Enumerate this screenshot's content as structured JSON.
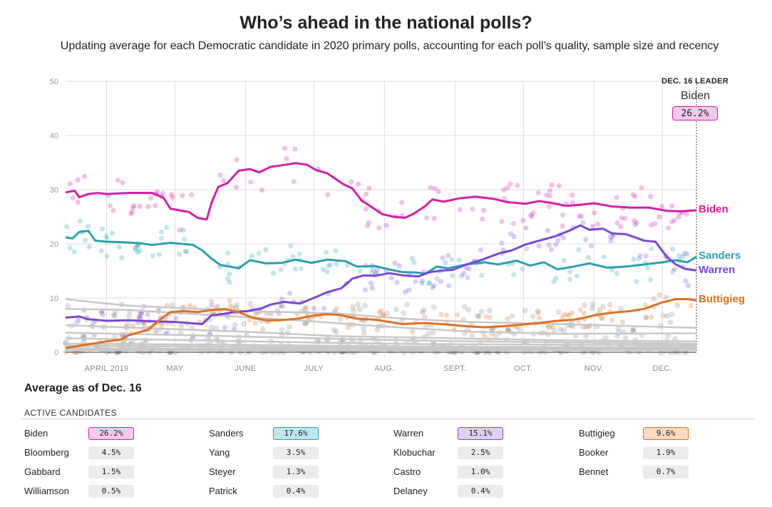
{
  "header": {
    "title": "Who’s ahead in the national polls?",
    "subtitle": "Updating average for each Democratic candidate in 2020 primary polls, accounting for each poll’s quality, sample size and recency"
  },
  "leader": {
    "heading": "DEC. 16 LEADER",
    "name": "Biden",
    "value": "26.2%"
  },
  "chart_data": {
    "type": "line",
    "ylim": [
      0,
      50
    ],
    "yticks": [
      0,
      10,
      20,
      30,
      40,
      50
    ],
    "xticks": [
      "APRIL 2019",
      "MAY",
      "JUNE",
      "JULY",
      "AUG.",
      "SEPT.",
      "OCT.",
      "NOV.",
      "DEC."
    ],
    "x_days": [
      0,
      30,
      61,
      91,
      122,
      153,
      183,
      214,
      244
    ],
    "x_range": [
      -18,
      259
    ],
    "series": [
      {
        "name": "Biden",
        "color": "#d41ea8",
        "label_value": 26.2,
        "points": [
          [
            -18,
            29.5
          ],
          [
            -14,
            29.8
          ],
          [
            -12,
            28.6
          ],
          [
            -8,
            29.2
          ],
          [
            -4,
            29.4
          ],
          [
            0,
            29.2
          ],
          [
            10,
            29.4
          ],
          [
            20,
            29.4
          ],
          [
            25,
            28.5
          ],
          [
            28,
            26.5
          ],
          [
            33,
            26.1
          ],
          [
            36,
            25.9
          ],
          [
            40,
            24.8
          ],
          [
            44,
            24.5
          ],
          [
            46,
            27.5
          ],
          [
            49,
            30.5
          ],
          [
            53,
            31.2
          ],
          [
            58,
            33.5
          ],
          [
            63,
            33.8
          ],
          [
            67,
            33.2
          ],
          [
            72,
            34.2
          ],
          [
            77,
            34.5
          ],
          [
            83,
            34.9
          ],
          [
            88,
            34.6
          ],
          [
            92,
            33.6
          ],
          [
            97,
            33.0
          ],
          [
            104,
            31.0
          ],
          [
            108,
            30.2
          ],
          [
            112,
            28.0
          ],
          [
            116,
            26.9
          ],
          [
            121,
            25.5
          ],
          [
            126,
            25.0
          ],
          [
            131,
            24.8
          ],
          [
            135,
            25.6
          ],
          [
            140,
            27.0
          ],
          [
            143,
            28.2
          ],
          [
            148,
            27.8
          ],
          [
            155,
            28.4
          ],
          [
            162,
            28.7
          ],
          [
            170,
            28.3
          ],
          [
            176,
            27.7
          ],
          [
            184,
            27.4
          ],
          [
            190,
            27.9
          ],
          [
            196,
            27.5
          ],
          [
            202,
            27.0
          ],
          [
            208,
            27.2
          ],
          [
            214,
            27.5
          ],
          [
            222,
            26.9
          ],
          [
            230,
            26.7
          ],
          [
            238,
            26.7
          ],
          [
            246,
            26.1
          ],
          [
            252,
            26.0
          ],
          [
            259,
            26.2
          ]
        ]
      },
      {
        "name": "Sanders",
        "color": "#2b9fb0",
        "label_value": 17.6,
        "points": [
          [
            -18,
            21.2
          ],
          [
            -15,
            21.0
          ],
          [
            -12,
            22.2
          ],
          [
            -8,
            22.4
          ],
          [
            -5,
            20.6
          ],
          [
            0,
            20.4
          ],
          [
            8,
            20.3
          ],
          [
            15,
            20.1
          ],
          [
            20,
            19.8
          ],
          [
            28,
            20.2
          ],
          [
            38,
            19.8
          ],
          [
            42,
            18.8
          ],
          [
            46,
            17.3
          ],
          [
            50,
            16.1
          ],
          [
            54,
            15.8
          ],
          [
            58,
            15.5
          ],
          [
            63,
            17.0
          ],
          [
            70,
            16.4
          ],
          [
            77,
            16.5
          ],
          [
            83,
            17.1
          ],
          [
            90,
            16.5
          ],
          [
            97,
            17.1
          ],
          [
            105,
            16.8
          ],
          [
            110,
            15.8
          ],
          [
            118,
            15.9
          ],
          [
            125,
            15.2
          ],
          [
            130,
            14.8
          ],
          [
            136,
            14.7
          ],
          [
            140,
            14.5
          ],
          [
            145,
            15.8
          ],
          [
            150,
            15.5
          ],
          [
            158,
            16.2
          ],
          [
            166,
            16.6
          ],
          [
            172,
            16.2
          ],
          [
            180,
            16.9
          ],
          [
            186,
            16.0
          ],
          [
            192,
            16.6
          ],
          [
            198,
            15.3
          ],
          [
            205,
            15.8
          ],
          [
            212,
            16.4
          ],
          [
            220,
            15.6
          ],
          [
            228,
            15.8
          ],
          [
            236,
            16.2
          ],
          [
            244,
            16.6
          ],
          [
            250,
            17.0
          ],
          [
            255,
            16.6
          ],
          [
            259,
            17.6
          ]
        ]
      },
      {
        "name": "Warren",
        "color": "#7b45d8",
        "label_value": 15.1,
        "points": [
          [
            -18,
            6.4
          ],
          [
            -12,
            6.6
          ],
          [
            -8,
            6.1
          ],
          [
            0,
            5.8
          ],
          [
            10,
            5.9
          ],
          [
            20,
            5.7
          ],
          [
            30,
            5.6
          ],
          [
            36,
            5.4
          ],
          [
            42,
            5.2
          ],
          [
            46,
            6.8
          ],
          [
            50,
            7.0
          ],
          [
            56,
            7.4
          ],
          [
            62,
            7.6
          ],
          [
            68,
            8.1
          ],
          [
            72,
            8.8
          ],
          [
            78,
            9.3
          ],
          [
            85,
            9.0
          ],
          [
            92,
            10.2
          ],
          [
            97,
            11.1
          ],
          [
            103,
            11.8
          ],
          [
            108,
            13.6
          ],
          [
            113,
            14.2
          ],
          [
            118,
            14.1
          ],
          [
            124,
            14.6
          ],
          [
            130,
            14.2
          ],
          [
            137,
            14.0
          ],
          [
            142,
            14.8
          ],
          [
            148,
            15.1
          ],
          [
            152,
            15.2
          ],
          [
            158,
            16.2
          ],
          [
            165,
            17.1
          ],
          [
            172,
            18.2
          ],
          [
            178,
            18.8
          ],
          [
            184,
            19.9
          ],
          [
            190,
            20.6
          ],
          [
            197,
            21.4
          ],
          [
            203,
            22.4
          ],
          [
            208,
            23.4
          ],
          [
            212,
            22.6
          ],
          [
            218,
            22.8
          ],
          [
            222,
            21.9
          ],
          [
            228,
            21.8
          ],
          [
            236,
            20.6
          ],
          [
            241,
            20.4
          ],
          [
            246,
            17.6
          ],
          [
            250,
            16.2
          ],
          [
            254,
            15.4
          ],
          [
            259,
            15.1
          ]
        ]
      },
      {
        "name": "Buttigieg",
        "color": "#e07020",
        "label_value": 9.6,
        "points": [
          [
            -18,
            0.8
          ],
          [
            -12,
            1.2
          ],
          [
            -6,
            1.6
          ],
          [
            0,
            2.0
          ],
          [
            6,
            2.3
          ],
          [
            10,
            3.2
          ],
          [
            18,
            4.1
          ],
          [
            24,
            6.2
          ],
          [
            28,
            7.4
          ],
          [
            34,
            7.6
          ],
          [
            40,
            7.4
          ],
          [
            46,
            7.8
          ],
          [
            52,
            8.0
          ],
          [
            58,
            7.4
          ],
          [
            64,
            6.4
          ],
          [
            70,
            5.9
          ],
          [
            76,
            5.9
          ],
          [
            84,
            6.2
          ],
          [
            90,
            6.7
          ],
          [
            96,
            7.0
          ],
          [
            102,
            6.9
          ],
          [
            110,
            6.2
          ],
          [
            118,
            6.0
          ],
          [
            124,
            5.6
          ],
          [
            130,
            5.2
          ],
          [
            140,
            5.4
          ],
          [
            150,
            5.1
          ],
          [
            158,
            4.8
          ],
          [
            166,
            4.6
          ],
          [
            174,
            4.8
          ],
          [
            182,
            5.1
          ],
          [
            190,
            5.4
          ],
          [
            198,
            5.8
          ],
          [
            205,
            6.0
          ],
          [
            210,
            6.4
          ],
          [
            215,
            6.9
          ],
          [
            222,
            7.3
          ],
          [
            230,
            7.6
          ],
          [
            236,
            8.0
          ],
          [
            240,
            8.6
          ],
          [
            244,
            9.2
          ],
          [
            250,
            9.8
          ],
          [
            255,
            9.8
          ],
          [
            259,
            9.6
          ]
        ]
      }
    ],
    "background_series": [
      [
        [
          -18,
          9.8
        ],
        [
          -5,
          9.2
        ],
        [
          10,
          8.6
        ],
        [
          30,
          8.2
        ],
        [
          60,
          7.6
        ],
        [
          100,
          7.2
        ],
        [
          130,
          6.2
        ],
        [
          160,
          5.6
        ],
        [
          200,
          5.2
        ],
        [
          259,
          4.5
        ]
      ],
      [
        [
          -18,
          8.0
        ],
        [
          10,
          7.8
        ],
        [
          40,
          7.0
        ],
        [
          80,
          6.0
        ],
        [
          120,
          4.8
        ],
        [
          160,
          3.8
        ],
        [
          200,
          3.4
        ],
        [
          259,
          3.5
        ]
      ],
      [
        [
          -18,
          5.0
        ],
        [
          20,
          4.4
        ],
        [
          60,
          3.8
        ],
        [
          100,
          3.0
        ],
        [
          150,
          2.6
        ],
        [
          200,
          2.2
        ],
        [
          259,
          2.0
        ]
      ],
      [
        [
          -18,
          3.6
        ],
        [
          30,
          3.2
        ],
        [
          70,
          2.8
        ],
        [
          110,
          2.4
        ],
        [
          160,
          2.0
        ],
        [
          210,
          1.8
        ],
        [
          259,
          1.6
        ]
      ],
      [
        [
          -18,
          2.6
        ],
        [
          40,
          2.2
        ],
        [
          90,
          1.8
        ],
        [
          140,
          1.5
        ],
        [
          200,
          1.4
        ],
        [
          259,
          1.3
        ]
      ],
      [
        [
          -18,
          1.6
        ],
        [
          50,
          1.4
        ],
        [
          100,
          1.2
        ],
        [
          160,
          1.0
        ],
        [
          220,
          0.9
        ],
        [
          259,
          1.0
        ]
      ],
      [
        [
          -18,
          1.2
        ],
        [
          60,
          1.0
        ],
        [
          120,
          0.8
        ],
        [
          180,
          0.7
        ],
        [
          259,
          0.7
        ]
      ],
      [
        [
          -18,
          0.7
        ],
        [
          80,
          0.6
        ],
        [
          160,
          0.5
        ],
        [
          259,
          0.5
        ]
      ],
      [
        [
          -18,
          0.4
        ],
        [
          100,
          0.3
        ],
        [
          200,
          0.4
        ],
        [
          259,
          0.4
        ]
      ]
    ]
  },
  "table": {
    "heading": "Average as of Dec. 16",
    "subheading": "ACTIVE CANDIDATES",
    "rows": [
      [
        {
          "name": "Biden",
          "value": "26.2%"
        },
        {
          "name": "Sanders",
          "value": "17.6%"
        },
        {
          "name": "Warren",
          "value": "15.1%"
        },
        {
          "name": "Buttigieg",
          "value": "9.6%"
        }
      ],
      [
        {
          "name": "Bloomberg",
          "value": "4.5%"
        },
        {
          "name": "Yang",
          "value": "3.5%"
        },
        {
          "name": "Klobuchar",
          "value": "2.5%"
        },
        {
          "name": "Booker",
          "value": "1.9%"
        }
      ],
      [
        {
          "name": "Gabbard",
          "value": "1.5%"
        },
        {
          "name": "Steyer",
          "value": "1.3%"
        },
        {
          "name": "Castro",
          "value": "1.0%"
        },
        {
          "name": "Bennet",
          "value": "0.7%"
        }
      ],
      [
        {
          "name": "Williamson",
          "value": "0.5%"
        },
        {
          "name": "Patrick",
          "value": "0.4%"
        },
        {
          "name": "Delaney",
          "value": "0.4%"
        }
      ]
    ],
    "highlight": {
      "Biden": {
        "bg": "#f6c9ec",
        "border": "#d41ea8"
      },
      "Sanders": {
        "bg": "#bfe6ee",
        "border": "#2b9fb0"
      },
      "Warren": {
        "bg": "#ddd0f6",
        "border": "#7b45d8"
      },
      "Buttigieg": {
        "bg": "#fbd9bf",
        "border": "#e07020"
      }
    }
  }
}
